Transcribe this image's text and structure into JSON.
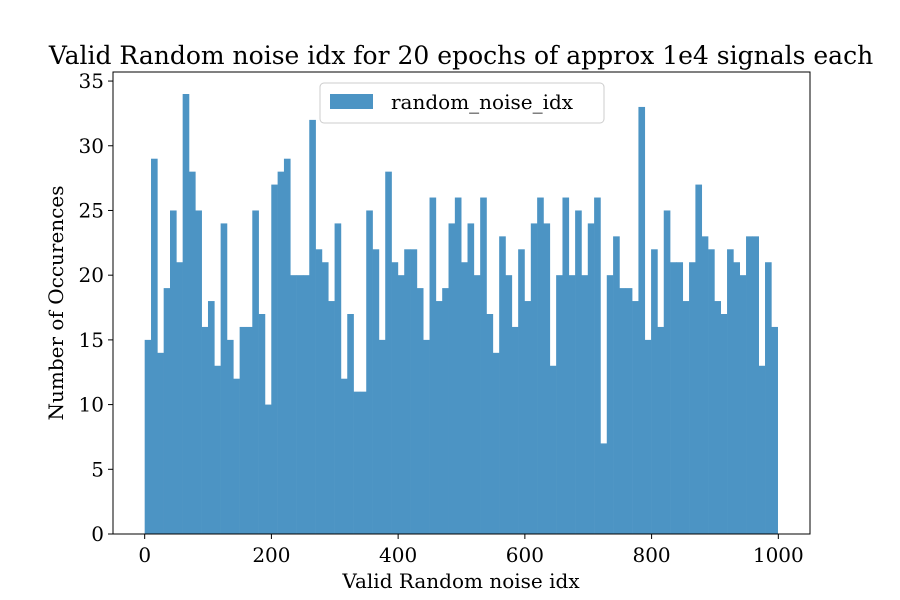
{
  "chart_data": {
    "type": "bar",
    "title": "Valid Random noise idx for 20 epochs of approx 1e4 signals each",
    "xlabel": "Valid Random noise idx",
    "ylabel": "Number of Occurences",
    "xlim": [
      -50,
      1050
    ],
    "ylim": [
      0,
      35.7
    ],
    "xticks": [
      0,
      200,
      400,
      600,
      800,
      1000
    ],
    "yticks": [
      0,
      5,
      10,
      15,
      20,
      25,
      30,
      35
    ],
    "bin_range": [
      0,
      999
    ],
    "series": [
      {
        "name": "random_noise_idx",
        "color": "#4c94c4",
        "values": [
          15,
          29,
          14,
          19,
          25,
          21,
          34,
          28,
          25,
          16,
          18,
          13,
          24,
          15,
          12,
          16,
          16,
          25,
          17,
          10,
          27,
          28,
          29,
          20,
          20,
          20,
          32,
          22,
          21,
          18,
          24,
          12,
          17,
          11,
          11,
          25,
          22,
          15,
          28,
          21,
          20,
          22,
          22,
          19,
          15,
          26,
          18,
          19,
          24,
          26,
          21,
          24,
          20,
          26,
          17,
          14,
          23,
          20,
          16,
          22,
          18,
          24,
          26,
          24,
          13,
          20,
          26,
          20,
          25,
          20,
          24,
          26,
          7,
          20,
          23,
          19,
          19,
          18,
          33,
          15,
          22,
          16,
          25,
          21,
          21,
          18,
          21,
          27,
          23,
          22,
          18,
          17,
          22,
          21,
          20,
          23,
          23,
          13,
          21,
          16
        ]
      }
    ],
    "legend": {
      "placement": "top-center"
    },
    "grid": false
  }
}
